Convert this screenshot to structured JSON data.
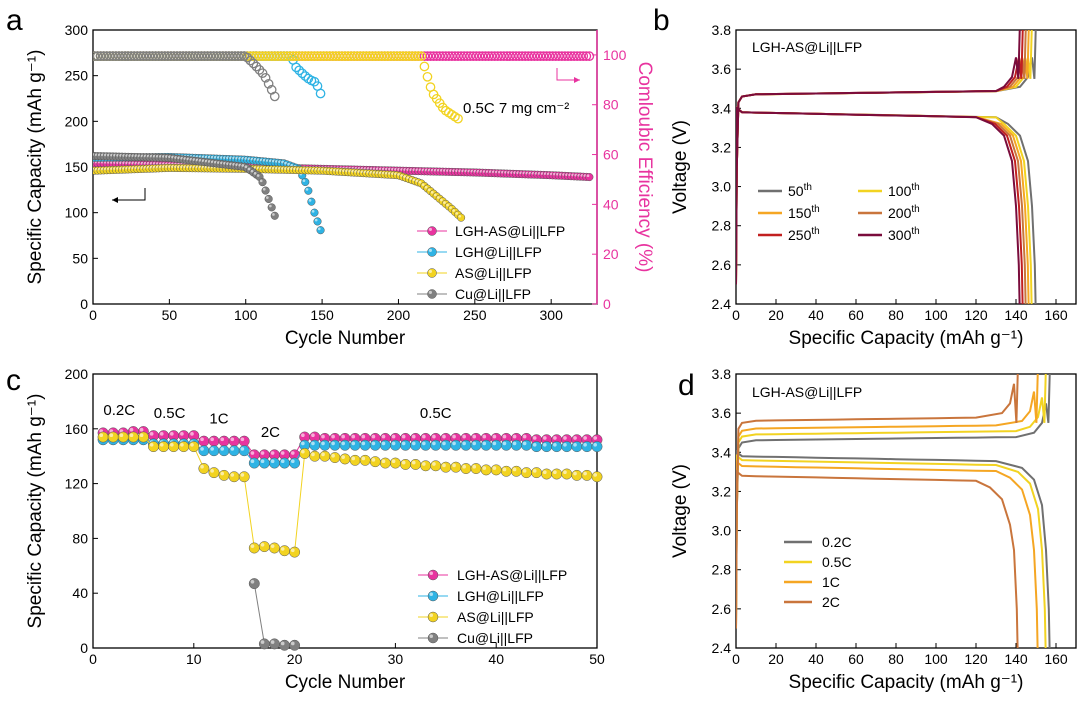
{
  "panel_labels": {
    "a": "a",
    "b": "b",
    "c": "c",
    "d": "d"
  },
  "chart_data": [
    {
      "id": "a",
      "type": "scatter",
      "xlabel": "Cycle Number",
      "ylabel": "Specific Capacity (mAh g⁻¹)",
      "y2label": "Comloubic Efficiency (%)",
      "xlim": [
        0,
        330
      ],
      "ylim": [
        0,
        300
      ],
      "y2lim": [
        0,
        110
      ],
      "xticks": [
        0,
        50,
        100,
        150,
        200,
        250,
        300
      ],
      "yticks": [
        0,
        50,
        100,
        150,
        200,
        250,
        300
      ],
      "y2ticks": [
        0,
        20,
        40,
        60,
        80,
        100
      ],
      "annotation": "0.5C   7 mg cm⁻²",
      "legend_position": "bottom-right",
      "series": [
        {
          "name": "LGH-AS@Li||LFP",
          "color": "#e8339f",
          "capacity": [
            [
              1,
              154
            ],
            [
              50,
              152
            ],
            [
              100,
              150
            ],
            [
              150,
              148
            ],
            [
              200,
              146
            ],
            [
              250,
              144
            ],
            [
              300,
              141
            ],
            [
              325,
              139
            ]
          ],
          "efficiency": [
            [
              1,
              99.5
            ],
            [
              325,
              99.5
            ]
          ]
        },
        {
          "name": "LGH@Li||LFP",
          "color": "#2fb3e4",
          "capacity": [
            [
              1,
              160
            ],
            [
              50,
              161
            ],
            [
              100,
              158
            ],
            [
              125,
              154
            ],
            [
              135,
              148
            ],
            [
              140,
              130
            ],
            [
              145,
              100
            ],
            [
              150,
              76
            ]
          ],
          "efficiency": [
            [
              1,
              99.5
            ],
            [
              130,
              99.5
            ],
            [
              133,
              95
            ],
            [
              138,
              92
            ],
            [
              142,
              90
            ],
            [
              146,
              89
            ],
            [
              150,
              83
            ]
          ]
        },
        {
          "name": "AS@Li||LFP",
          "color": "#f2d321",
          "capacity": [
            [
              1,
              146
            ],
            [
              50,
              149
            ],
            [
              100,
              148
            ],
            [
              150,
              146
            ],
            [
              200,
              141
            ],
            [
              215,
              132
            ],
            [
              225,
              118
            ],
            [
              235,
              104
            ],
            [
              242,
              93
            ]
          ],
          "efficiency": [
            [
              1,
              99.5
            ],
            [
              215,
              99.5
            ],
            [
              222,
              85
            ],
            [
              230,
              78
            ],
            [
              240,
              74
            ]
          ]
        },
        {
          "name": "Cu@Li||LFP",
          "color": "#808080",
          "capacity": [
            [
              1,
              162
            ],
            [
              50,
              160
            ],
            [
              100,
              150
            ],
            [
              110,
              138
            ],
            [
              115,
              115
            ],
            [
              120,
              92
            ]
          ],
          "efficiency": [
            [
              1,
              99.5
            ],
            [
              100,
              99.5
            ],
            [
              106,
              96
            ],
            [
              112,
              92
            ],
            [
              117,
              86
            ],
            [
              120,
              82
            ]
          ]
        }
      ]
    },
    {
      "id": "b",
      "type": "line",
      "xlabel": "Specific Capacity (mAh g⁻¹)",
      "ylabel": "Voltage (V)",
      "xlim": [
        0,
        170
      ],
      "ylim": [
        2.4,
        3.8
      ],
      "xticks": [
        0,
        20,
        40,
        60,
        80,
        100,
        120,
        140,
        160
      ],
      "yticks": [
        2.4,
        2.6,
        2.8,
        3.0,
        3.2,
        3.4,
        3.6,
        3.8
      ],
      "title": "LGH-AS@Li||LFP",
      "legend_position": "middle-left",
      "series": [
        {
          "name": "50",
          "sup": "th",
          "color": "#707070",
          "cap": 150
        },
        {
          "name": "100",
          "sup": "th",
          "color": "#f2d321",
          "cap": 148
        },
        {
          "name": "150",
          "sup": "th",
          "color": "#f5a623",
          "cap": 146.5
        },
        {
          "name": "200",
          "sup": "th",
          "color": "#c9753c",
          "cap": 145
        },
        {
          "name": "250",
          "sup": "th",
          "color": "#c22020",
          "cap": 143.5
        },
        {
          "name": "300",
          "sup": "th",
          "color": "#7a0c3c",
          "cap": 142
        }
      ]
    },
    {
      "id": "c",
      "type": "scatter",
      "xlabel": "Cycle Number",
      "ylabel": "Specific Capacity (mAh g⁻¹)",
      "xlim": [
        0,
        50
      ],
      "ylim": [
        0,
        200
      ],
      "xticks": [
        0,
        10,
        20,
        30,
        40,
        50
      ],
      "yticks": [
        0,
        40,
        80,
        120,
        160,
        200
      ],
      "legend_position": "bottom-right",
      "annotations": [
        {
          "text": "0.2C",
          "x": 2.6,
          "y": 170
        },
        {
          "text": "0.5C",
          "x": 7.6,
          "y": 168
        },
        {
          "text": "1C",
          "x": 12.5,
          "y": 164
        },
        {
          "text": "2C",
          "x": 17.6,
          "y": 154
        },
        {
          "text": "0.5C",
          "x": 34,
          "y": 168
        }
      ],
      "series": [
        {
          "name": "LGH-AS@Li||LFP",
          "color": "#e8339f",
          "values": [
            157,
            157,
            157,
            158,
            158,
            155,
            155,
            155,
            155,
            155,
            151,
            151,
            151,
            151,
            151,
            141,
            141,
            141,
            141,
            141,
            154,
            154,
            153,
            153,
            153,
            153,
            153,
            153,
            153,
            153,
            153,
            153,
            153,
            153,
            153,
            153,
            153,
            153,
            153,
            153,
            153,
            153,
            153,
            152,
            152,
            152,
            152,
            152,
            152,
            152
          ]
        },
        {
          "name": "LGH@Li||LFP",
          "color": "#2fb3e4",
          "values": [
            152,
            152,
            152,
            152,
            152,
            149,
            149,
            149,
            149,
            149,
            144,
            144,
            144,
            144,
            144,
            135,
            135,
            135,
            135,
            135,
            148,
            148,
            148,
            148,
            148,
            148,
            148,
            148,
            148,
            148,
            148,
            148,
            148,
            148,
            148,
            148,
            148,
            148,
            148,
            148,
            148,
            148,
            148,
            147,
            147,
            147,
            147,
            147,
            147,
            147
          ]
        },
        {
          "name": "AS@Li||LFP",
          "color": "#f2d321",
          "values": [
            154,
            154,
            154,
            154,
            154,
            147,
            147,
            147,
            147,
            147,
            131,
            128,
            126,
            125,
            125,
            73,
            74,
            73,
            71,
            70,
            142,
            140,
            140,
            139,
            138,
            137,
            137,
            136,
            135,
            135,
            134,
            134,
            133,
            133,
            132,
            132,
            131,
            131,
            130,
            130,
            129,
            129,
            128,
            128,
            127,
            127,
            127,
            126,
            126,
            125
          ]
        },
        {
          "name": "Cu@Li||LFP",
          "color": "#808080",
          "values": [
            null,
            null,
            null,
            null,
            null,
            null,
            null,
            null,
            null,
            null,
            null,
            null,
            null,
            null,
            null,
            47,
            3,
            3,
            2,
            2,
            null,
            null,
            null,
            null,
            null,
            null,
            null,
            null,
            null,
            null,
            null,
            null,
            null,
            null,
            null,
            null,
            null,
            null,
            null,
            null,
            null,
            null,
            null,
            null,
            null,
            null,
            null,
            null,
            null,
            null
          ]
        }
      ]
    },
    {
      "id": "d",
      "type": "line",
      "xlabel": "Specific Capacity (mAh g⁻¹)",
      "ylabel": "Voltage (V)",
      "xlim": [
        0,
        170
      ],
      "ylim": [
        2.4,
        3.8
      ],
      "xticks": [
        0,
        20,
        40,
        60,
        80,
        100,
        120,
        140,
        160
      ],
      "yticks": [
        2.4,
        2.6,
        2.8,
        3.0,
        3.2,
        3.4,
        3.6,
        3.8
      ],
      "title": "LGH-AS@Li||LFP",
      "legend_position": "bottom-left",
      "series": [
        {
          "name": "0.2C",
          "color": "#707070",
          "cap": 157,
          "vch": 3.45,
          "vdis": 3.38
        },
        {
          "name": "0.5C",
          "color": "#f2d321",
          "cap": 155,
          "vch": 3.48,
          "vdis": 3.36
        },
        {
          "name": "1C",
          "color": "#f5a623",
          "cap": 151,
          "vch": 3.51,
          "vdis": 3.33
        },
        {
          "name": "2C",
          "color": "#c9753c",
          "cap": 141,
          "vch": 3.55,
          "vdis": 3.28
        }
      ]
    }
  ]
}
